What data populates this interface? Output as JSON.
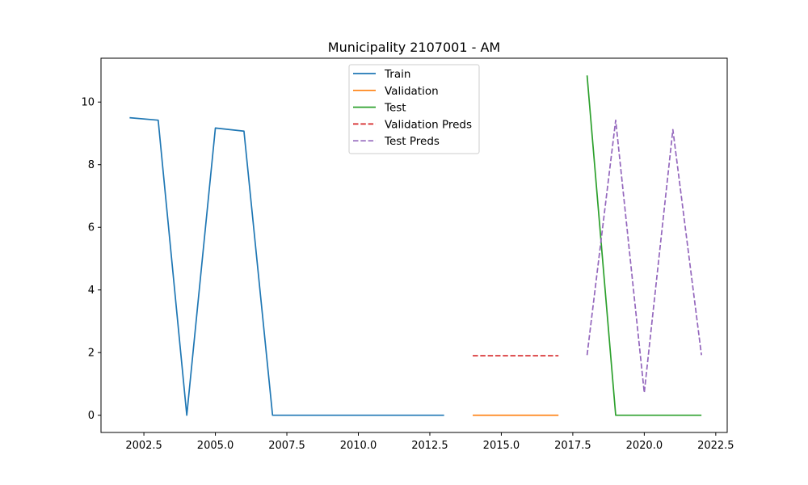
{
  "chart_data": {
    "type": "line",
    "title": "Municipality 2107001 - AM",
    "xlabel": "",
    "ylabel": "",
    "xlim": [
      2001.0,
      2022.9
    ],
    "ylim": [
      -0.55,
      11.4
    ],
    "xticks": [
      2002.5,
      2005.0,
      2007.5,
      2010.0,
      2012.5,
      2015.0,
      2017.5,
      2020.0,
      2022.5
    ],
    "xtick_labels": [
      "2002.5",
      "2005.0",
      "2007.5",
      "2010.0",
      "2012.5",
      "2015.0",
      "2017.5",
      "2020.0",
      "2022.5"
    ],
    "yticks": [
      0,
      2,
      4,
      6,
      8,
      10
    ],
    "ytick_labels": [
      "0",
      "2",
      "4",
      "6",
      "8",
      "10"
    ],
    "grid": false,
    "legend_position": "top-center",
    "series": [
      {
        "name": "Train",
        "color": "#1f77b4",
        "dash": "solid",
        "x": [
          2002,
          2003,
          2004,
          2005,
          2006,
          2007,
          2008,
          2009,
          2010,
          2011,
          2012,
          2013
        ],
        "y": [
          9.5,
          9.42,
          0,
          9.17,
          9.07,
          0,
          0,
          0,
          0,
          0,
          0,
          0
        ]
      },
      {
        "name": "Validation",
        "color": "#ff7f0e",
        "dash": "solid",
        "x": [
          2014,
          2015,
          2016,
          2017
        ],
        "y": [
          0,
          0,
          0,
          0
        ]
      },
      {
        "name": "Test",
        "color": "#2ca02c",
        "dash": "solid",
        "x": [
          2018,
          2019,
          2020,
          2021,
          2022
        ],
        "y": [
          10.85,
          0,
          0,
          0,
          0
        ]
      },
      {
        "name": "Validation Preds",
        "color": "#d62728",
        "dash": "dashed",
        "x": [
          2014,
          2015,
          2016,
          2017
        ],
        "y": [
          1.9,
          1.9,
          1.9,
          1.9
        ]
      },
      {
        "name": "Test Preds",
        "color": "#9467bd",
        "dash": "dashed",
        "x": [
          2018,
          2019,
          2020,
          2021,
          2022
        ],
        "y": [
          1.92,
          9.42,
          0.72,
          9.12,
          1.92
        ]
      }
    ]
  }
}
